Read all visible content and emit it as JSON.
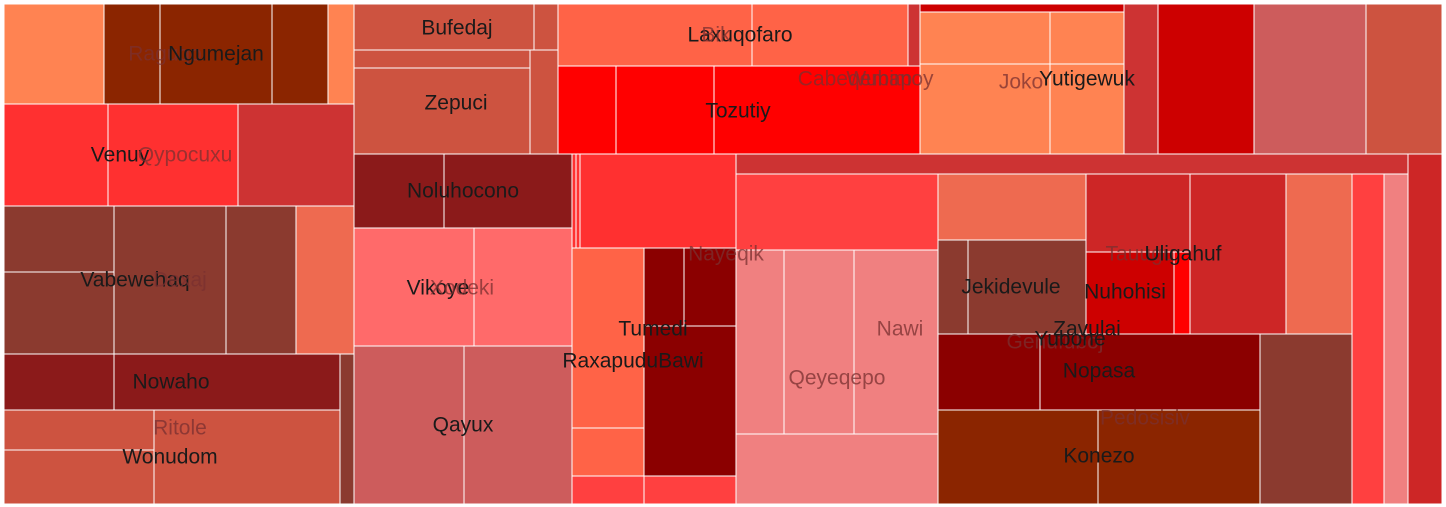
{
  "chart_data": {
    "type": "treemap",
    "title": "",
    "labels": [
      "Raguqo",
      "Ngumejan",
      "Bufedaj",
      "Laxuqofaro",
      "Bik",
      "Cabeqemap",
      "Wubimoy",
      "Joko",
      "Yutigewuk",
      "Tozutiy",
      "Zepuci",
      "Venuy",
      "Qypocuxu",
      "Noluhocono",
      "Vabewehaq",
      "Dexaj",
      "Vikoye",
      "Xodeki",
      "Nayeqik",
      "Tumedi",
      "RaxapuduBawi",
      "Nawi",
      "Qeyeqepo",
      "Jekidevule",
      "Tauugu",
      "Uligahuf",
      "Nuhohisi",
      "Zavulai",
      "Genufuboj",
      "Yubone",
      "Nopasa",
      "Pedosisiv",
      "Konezo",
      "Nowaho",
      "Ritole",
      "Wonudom",
      "Qayux"
    ],
    "colors": [
      "#8b2500",
      "#ff8352",
      "#cd5340",
      "#ff6347",
      "#ff0000",
      "#cd0000",
      "#ff3030",
      "#cd3333",
      "#8b1a1a",
      "#8b3a2f",
      "#ee6a50",
      "#ff6a6a",
      "#cd5c5c",
      "#f08080",
      "#8b0000",
      "#ff4040",
      "#cd2626"
    ]
  }
}
